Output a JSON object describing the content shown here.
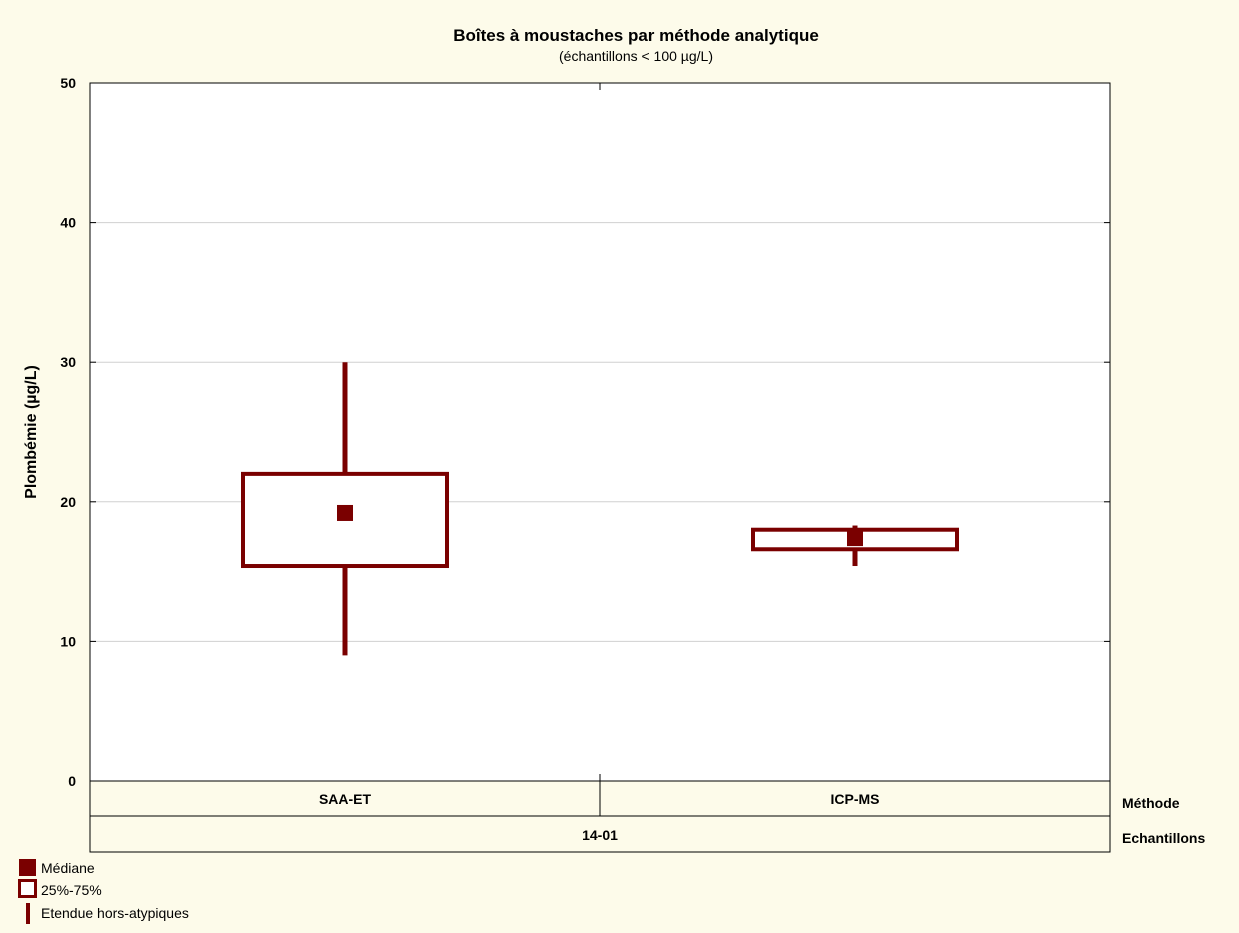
{
  "chart_data": {
    "type": "box",
    "title": "Boîtes à moustaches par méthode analytique",
    "subtitle": "(échantillons < 100 µg/L)",
    "ylabel": "Plombémie (µg/L)",
    "ylim": [
      0,
      50
    ],
    "yticks": [
      0,
      10,
      20,
      30,
      40,
      50
    ],
    "grid": true,
    "categories": [
      "SAA-ET",
      "ICP-MS"
    ],
    "category_row_title": "Méthode",
    "group_row_label": "14-01",
    "group_row_title": "Echantillons",
    "series": [
      {
        "category": "SAA-ET",
        "median": 19.2,
        "q1": 15.4,
        "q3": 22.0,
        "whisker_low": 9.0,
        "whisker_high": 30.0
      },
      {
        "category": "ICP-MS",
        "median": 17.4,
        "q1": 16.6,
        "q3": 18.0,
        "whisker_low": 15.4,
        "whisker_high": 18.3
      }
    ],
    "legend": {
      "placement": "bottom-left",
      "items": [
        {
          "label": "Médiane",
          "marker": "filled-square"
        },
        {
          "label": "25%-75%",
          "marker": "open-box"
        },
        {
          "label": "Etendue hors-atypiques",
          "marker": "whisker-line"
        }
      ]
    },
    "colors": {
      "series": "#7a0000",
      "background": "#fdfbea",
      "plot": "#ffffff",
      "grid": "#d0d0d0"
    }
  }
}
